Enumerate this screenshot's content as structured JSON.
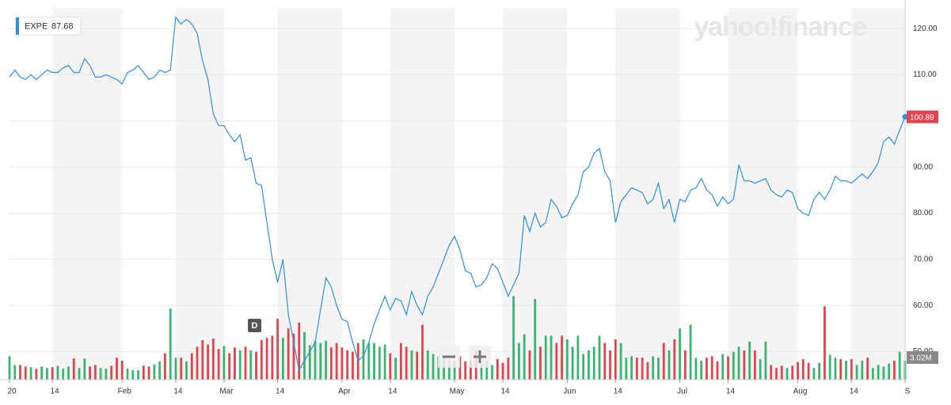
{
  "chart_data": {
    "type": "line",
    "legend": {
      "symbol": "EXPE",
      "price": 87.68
    },
    "watermark": "yahoo!finance",
    "marker_letter": "D",
    "color": "#2f8fd8",
    "up_color": "#3cb371",
    "down_color": "#e0454f",
    "ylim": [
      43.9,
      124.5
    ],
    "yticks": [
      {
        "value": 120,
        "label": "120.00"
      },
      {
        "value": 110,
        "label": "110.00"
      },
      {
        "value": 100,
        "label": "100.00"
      },
      {
        "value": 90,
        "label": "90.00"
      },
      {
        "value": 80,
        "label": "80.00"
      },
      {
        "value": 70,
        "label": "70.00"
      },
      {
        "value": 60,
        "label": "60.00"
      },
      {
        "value": 50,
        "label": "50.00"
      }
    ],
    "xlim": [
      0,
      167
    ],
    "xticks": [
      {
        "value": 0,
        "label": "20"
      },
      {
        "value": 8,
        "label": "14"
      },
      {
        "value": 21,
        "label": "Feb"
      },
      {
        "value": 31,
        "label": "14"
      },
      {
        "value": 40,
        "label": "Mar"
      },
      {
        "value": 50,
        "label": "14"
      },
      {
        "value": 62,
        "label": "Apr"
      },
      {
        "value": 71,
        "label": "14"
      },
      {
        "value": 83,
        "label": "May"
      },
      {
        "value": 92,
        "label": "14"
      },
      {
        "value": 104,
        "label": "Jun"
      },
      {
        "value": 113,
        "label": "14"
      },
      {
        "value": 125,
        "label": "Jul"
      },
      {
        "value": 134,
        "label": "14"
      },
      {
        "value": 147,
        "label": "Aug"
      },
      {
        "value": 157,
        "label": "14"
      },
      {
        "value": 167,
        "label": "S"
      }
    ],
    "grid": true,
    "values": [
      109.5,
      111,
      109.5,
      109,
      110,
      109,
      110,
      111,
      110.5,
      110.5,
      111.5,
      112,
      110.5,
      110.5,
      113.5,
      112,
      109.5,
      109.5,
      110,
      109.5,
      109,
      108,
      110.5,
      111,
      112,
      110.5,
      109,
      109.5,
      111,
      110.5,
      111,
      122.5,
      121,
      122,
      121,
      119,
      113,
      109,
      101.5,
      99,
      99,
      97,
      95.5,
      97,
      91.5,
      92,
      86.5,
      86,
      78,
      70,
      65,
      70,
      58,
      52,
      46,
      48,
      50,
      52,
      59,
      66,
      64,
      60,
      57,
      56.5,
      52,
      48,
      49,
      52,
      56,
      59,
      62,
      59,
      61.5,
      61,
      58,
      63,
      60,
      58,
      62,
      64,
      67,
      70,
      73,
      75,
      72,
      67.5,
      67,
      64,
      64.5,
      66,
      69,
      68,
      65,
      62,
      64.5,
      67,
      79.5,
      76,
      80,
      77,
      78,
      83,
      81.5,
      79,
      79.5,
      82,
      84,
      89,
      90,
      93,
      94,
      89,
      87,
      78,
      82.5,
      84,
      85.5,
      85,
      84.5,
      82,
      83,
      86.5,
      81,
      83,
      78,
      83,
      82.5,
      85,
      85.5,
      87.5,
      85,
      84,
      81.5,
      83.5,
      82,
      83,
      90.5,
      87,
      87,
      86.5,
      87,
      87.5,
      85,
      84,
      83.5,
      85,
      84.5,
      81,
      80,
      79.5,
      83,
      84.5,
      83,
      85,
      88,
      87,
      87,
      86.5,
      87.5,
      88.5,
      87.5,
      89,
      91,
      95.5,
      96.5,
      95,
      98,
      100.89
    ],
    "volume_ylim": [
      0,
      15
    ],
    "volume_marker": {
      "value": 3.02,
      "label": "3.02M"
    },
    "volume": [
      3.2,
      2.0,
      2.0,
      1.8,
      1.7,
      1.5,
      1.8,
      1.6,
      1.7,
      1.9,
      1.5,
      1.8,
      2.9,
      1.6,
      2.9,
      1.8,
      2.0,
      1.6,
      1.5,
      1.9,
      3.0,
      2.6,
      1.5,
      1.3,
      1.3,
      1.9,
      1.8,
      2.1,
      2.5,
      3.6,
      9.7,
      3.0,
      3.0,
      2.5,
      3.6,
      4.5,
      5.4,
      4.8,
      5.6,
      4.2,
      4.6,
      3.6,
      4.4,
      4.0,
      4.5,
      4.0,
      3.8,
      5.4,
      5.7,
      6.0,
      8.3,
      5.7,
      7.0,
      6.3,
      7.8,
      6.5,
      4.7,
      5.3,
      5.0,
      5.3,
      4.4,
      5.0,
      4.4,
      4.0,
      3.8,
      5.0,
      5.5,
      5.0,
      5.0,
      4.5,
      4.8,
      3.6,
      3.0,
      5.0,
      4.5,
      4.0,
      3.8,
      7.5,
      4.0,
      3.5,
      3.2,
      3.0,
      2.5,
      2.5,
      3.2,
      2.5,
      2.6,
      4.0,
      2.2,
      2.5,
      2.0,
      2.8,
      2.3,
      3.0,
      11.4,
      5.0,
      6.2,
      4.0,
      11.0,
      4.5,
      6.0,
      6.0,
      5.0,
      6.0,
      5.5,
      4.5,
      6.0,
      3.5,
      4.0,
      4.5,
      6.0,
      5.0,
      4.0,
      5.5,
      5.0,
      3.0,
      3.2,
      3.0,
      3.0,
      2.4,
      3.2,
      3.0,
      5.0,
      4.0,
      5.5,
      7.0,
      4.0,
      7.5,
      3.0,
      2.6,
      3.0,
      3.2,
      2.5,
      3.5,
      3.2,
      3.8,
      4.5,
      4.0,
      5.2,
      4.0,
      2.8,
      5.2,
      2.0,
      1.6,
      1.9,
      1.6,
      1.9,
      2.4,
      2.8,
      2.3,
      1.6,
      2.3,
      10.0,
      3.4,
      3.0,
      2.8,
      2.6,
      2.8,
      2.0,
      2.6,
      3.0,
      1.6,
      2.0,
      1.8,
      2.2,
      2.6,
      3.8,
      2.6
    ]
  }
}
